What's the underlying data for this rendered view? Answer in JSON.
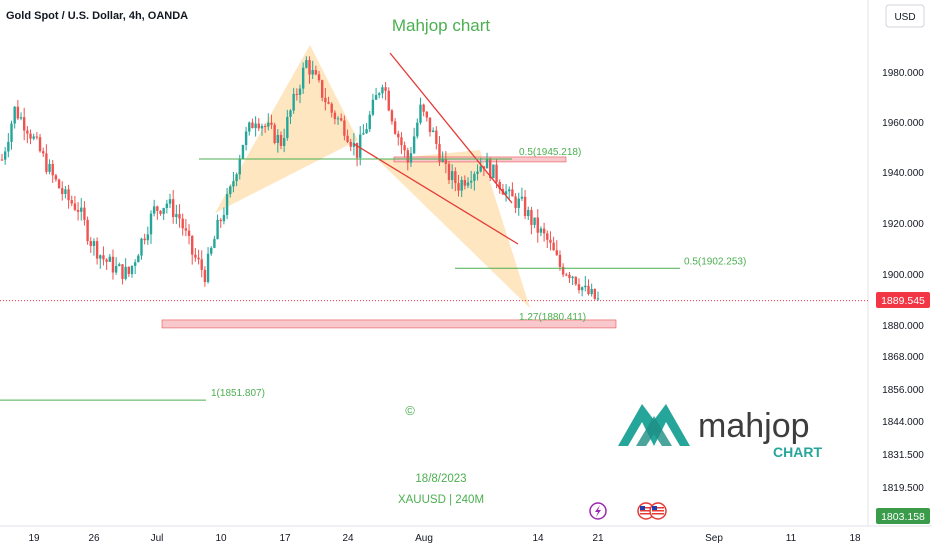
{
  "header": {
    "symbol_title": "Gold Spot / U.S. Dollar, 4h, OANDA",
    "chart_name": "Mahjop chart",
    "currency_button": "USD"
  },
  "chart_data": {
    "type": "candlestick",
    "symbol": "XAUUSD",
    "timeframe": "4h",
    "y_axis": {
      "ticks": [
        "1980.000",
        "1960.000",
        "1940.000",
        "1920.000",
        "1900.000",
        "1880.000",
        "1868.000",
        "1856.000",
        "1844.000",
        "1831.500",
        "1819.500",
        "1803.158"
      ],
      "tick_values": [
        1980,
        1960,
        1940,
        1920,
        1900,
        1880,
        1868,
        1856,
        1844,
        1831.5,
        1819.5,
        1803.158
      ]
    },
    "x_axis": {
      "ticks": [
        "19",
        "26",
        "Jul",
        "10",
        "17",
        "24",
        "Aug",
        "14",
        "21",
        "Sep",
        "11",
        "18"
      ]
    },
    "current_price": "1889.545",
    "secondary_price_label": "1803.158",
    "candles_close_path": [
      [
        0,
        1945
      ],
      [
        4,
        1965
      ],
      [
        8,
        1958
      ],
      [
        12,
        1948
      ],
      [
        16,
        1938
      ],
      [
        20,
        1930
      ],
      [
        24,
        1926
      ],
      [
        28,
        1913
      ],
      [
        32,
        1906
      ],
      [
        36,
        1902
      ],
      [
        40,
        1900
      ],
      [
        44,
        1913
      ],
      [
        48,
        1925
      ],
      [
        52,
        1928
      ],
      [
        56,
        1922
      ],
      [
        60,
        1908
      ],
      [
        64,
        1900
      ],
      [
        68,
        1918
      ],
      [
        72,
        1932
      ],
      [
        76,
        1952
      ],
      [
        80,
        1962
      ],
      [
        84,
        1957
      ],
      [
        88,
        1952
      ],
      [
        92,
        1968
      ],
      [
        96,
        1984
      ],
      [
        100,
        1974
      ],
      [
        104,
        1964
      ],
      [
        108,
        1958
      ],
      [
        112,
        1948
      ],
      [
        116,
        1962
      ],
      [
        120,
        1977
      ],
      [
        124,
        1958
      ],
      [
        128,
        1944
      ],
      [
        132,
        1965
      ],
      [
        136,
        1955
      ],
      [
        140,
        1940
      ],
      [
        144,
        1935
      ],
      [
        148,
        1940
      ],
      [
        152,
        1944
      ],
      [
        156,
        1938
      ],
      [
        160,
        1930
      ],
      [
        164,
        1927
      ],
      [
        168,
        1919
      ],
      [
        172,
        1913
      ],
      [
        176,
        1903
      ],
      [
        180,
        1900
      ],
      [
        184,
        1893
      ],
      [
        188,
        1889.5
      ]
    ],
    "levels": [
      {
        "label": "0.5(1945.218)",
        "value": 1945.218
      },
      {
        "label": "0.5(1902.253)",
        "value": 1902.253
      },
      {
        "label": "1.27(1880.411)",
        "value": 1880.411
      },
      {
        "label": "1(1851.807)",
        "value": 1851.807
      }
    ],
    "annotations": {
      "date": "18/8/2023",
      "symbol_tf": "XAUUSD | 240M",
      "copyright": "©"
    },
    "colors": {
      "up": "#26a69a",
      "down": "#ef5350",
      "level_line": "#4caf50",
      "pattern_fill": "#fde2b5",
      "zone_fill": "#f8c8cc",
      "channel": "#e53935",
      "price_tag": "#f23645",
      "secondary_tag": "#3a9c4a"
    }
  },
  "logo": {
    "word": "mahjop",
    "sub": "CHART"
  },
  "events": {
    "lightning_icon": "lightning-icon",
    "flag_icons": [
      "us-flag-icon",
      "us-flag-icon"
    ]
  }
}
